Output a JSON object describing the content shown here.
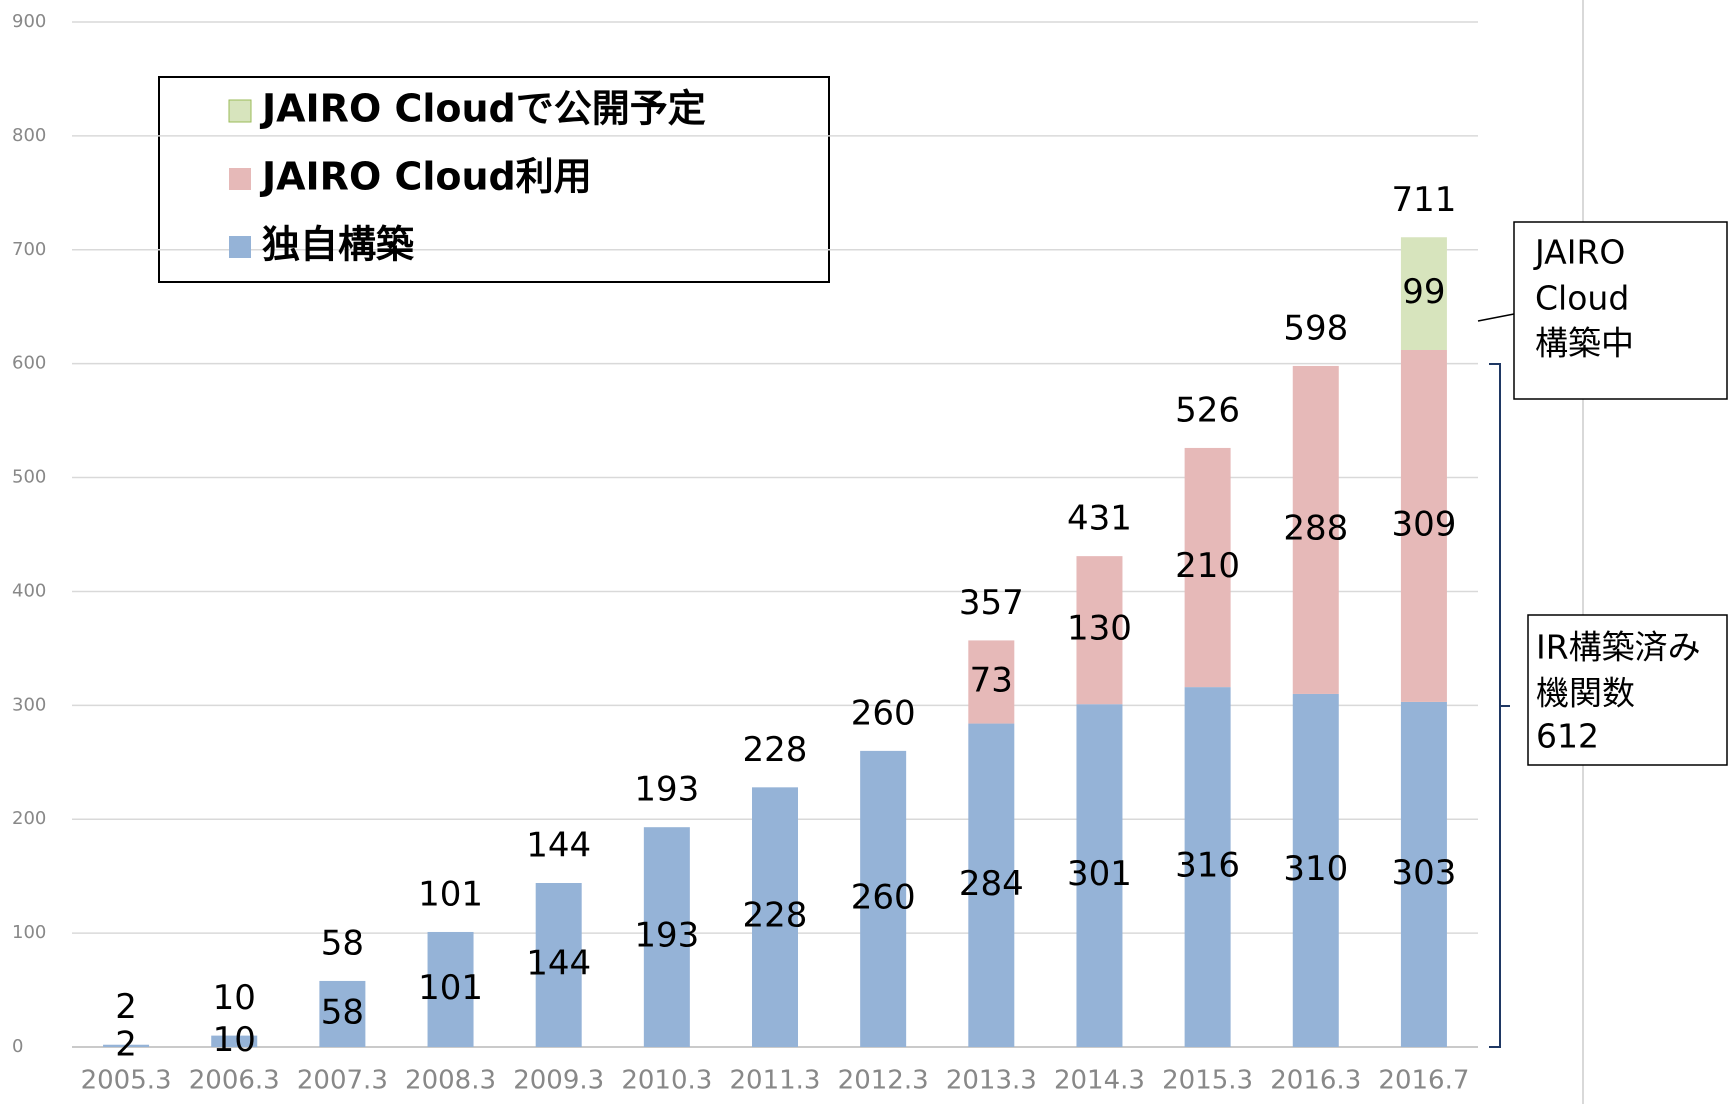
{
  "chart_data": {
    "type": "bar",
    "stacked": true,
    "categories": [
      "2005.3",
      "2006.3",
      "2007.3",
      "2008.3",
      "2009.3",
      "2010.3",
      "2011.3",
      "2012.3",
      "2013.3",
      "2014.3",
      "2015.3",
      "2016.3",
      "2016.7"
    ],
    "series": [
      {
        "name": "独自構築",
        "color": "#95b3d7",
        "values": [
          2,
          10,
          58,
          101,
          144,
          193,
          228,
          260,
          284,
          301,
          316,
          310,
          303
        ]
      },
      {
        "name": "JAIRO Cloud利用",
        "color": "#e6b9b8",
        "values": [
          null,
          null,
          null,
          null,
          null,
          null,
          null,
          null,
          73,
          130,
          210,
          288,
          309
        ]
      },
      {
        "name": "JAIRO Cloudで公開予定",
        "color": "#d7e4bd",
        "values": [
          null,
          null,
          null,
          null,
          null,
          null,
          null,
          null,
          null,
          null,
          null,
          null,
          99
        ]
      }
    ],
    "totals": [
      2,
      10,
      58,
      101,
      144,
      193,
      228,
      260,
      357,
      431,
      526,
      598,
      711
    ],
    "ylim": [
      0,
      900
    ],
    "yticks": [
      0,
      100,
      200,
      300,
      400,
      500,
      600,
      700,
      800,
      900
    ],
    "grid": true,
    "legend": "upper left",
    "annotations": [
      {
        "lines": [
          "JAIRO",
          "Cloud",
          "構築中"
        ]
      },
      {
        "lines": [
          "IR構築済み",
          "機関数",
          "612"
        ]
      }
    ]
  }
}
